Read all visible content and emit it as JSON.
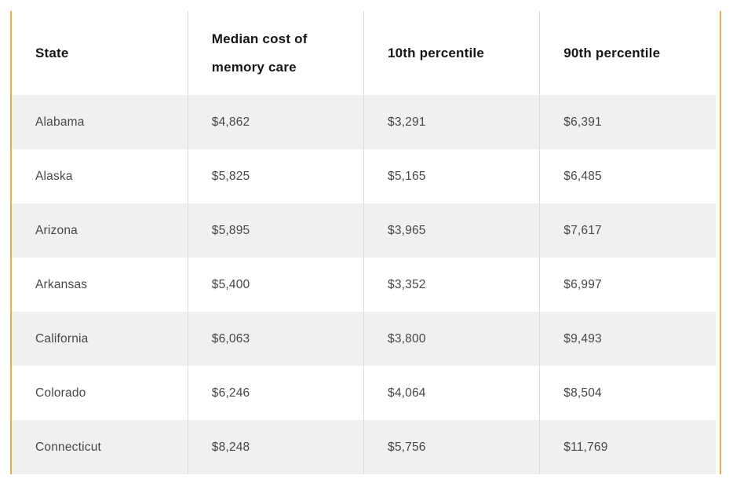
{
  "colors": {
    "accent": "#F0AC44",
    "row_stripe": "#F0F0F0",
    "divider": "#DBDBDB",
    "header_text": "#161616",
    "body_text": "#474747",
    "page_background": "#FFFFFF"
  },
  "table": {
    "columns": [
      "State",
      "Median cost of memory care",
      "10th percentile",
      "90th percentile"
    ],
    "rows": [
      {
        "state": "Alabama",
        "median_cost": "$4,862",
        "p10": "$3,291",
        "p90": "$6,391"
      },
      {
        "state": "Alaska",
        "median_cost": "$5,825",
        "p10": "$5,165",
        "p90": "$6,485"
      },
      {
        "state": "Arizona",
        "median_cost": "$5,895",
        "p10": "$3,965",
        "p90": "$7,617"
      },
      {
        "state": "Arkansas",
        "median_cost": "$5,400",
        "p10": "$3,352",
        "p90": "$6,997"
      },
      {
        "state": "California",
        "median_cost": "$6,063",
        "p10": "$3,800",
        "p90": "$9,493"
      },
      {
        "state": "Colorado",
        "median_cost": "$6,246",
        "p10": "$4,064",
        "p90": "$8,504"
      },
      {
        "state": "Connecticut",
        "median_cost": "$8,248",
        "p10": "$5,756",
        "p90": "$11,769"
      }
    ]
  },
  "chart_data": {
    "type": "table",
    "title": "",
    "columns": [
      "State",
      "Median cost of memory care",
      "10th percentile",
      "90th percentile"
    ],
    "rows": [
      [
        "Alabama",
        "$4,862",
        "$3,291",
        "$6,391"
      ],
      [
        "Alaska",
        "$5,825",
        "$5,165",
        "$6,485"
      ],
      [
        "Arizona",
        "$5,895",
        "$3,965",
        "$7,617"
      ],
      [
        "Arkansas",
        "$5,400",
        "$3,352",
        "$6,997"
      ],
      [
        "California",
        "$6,063",
        "$3,800",
        "$9,493"
      ],
      [
        "Colorado",
        "$6,246",
        "$4,064",
        "$8,504"
      ],
      [
        "Connecticut",
        "$8,248",
        "$5,756",
        "$11,769"
      ]
    ]
  }
}
